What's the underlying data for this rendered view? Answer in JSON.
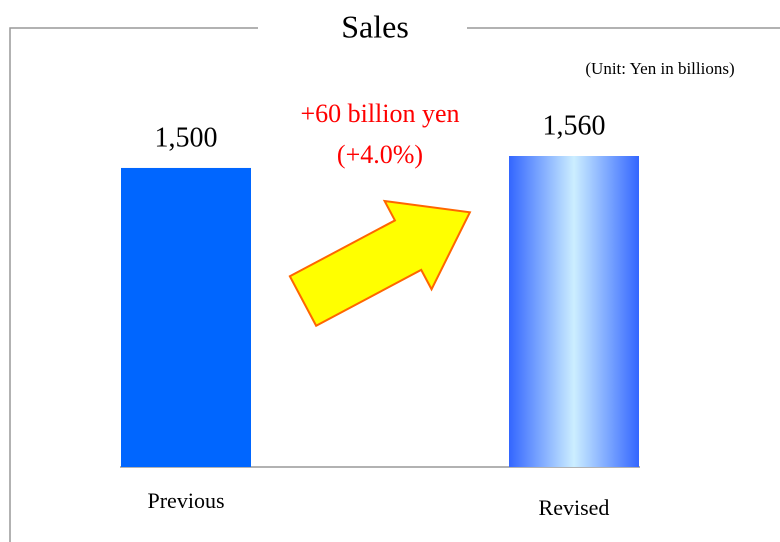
{
  "chart_data": {
    "type": "bar",
    "title": "Sales",
    "subtitle": "(Unit: Yen in billions)",
    "categories": [
      "Previous",
      "Revised"
    ],
    "values": [
      1500,
      1560
    ],
    "value_labels": [
      "1,500",
      "1,560"
    ],
    "colors": [
      "#0066FF",
      "#3366FF"
    ],
    "annotations": [
      "+60 billion yen",
      "(+4.0%)"
    ]
  }
}
